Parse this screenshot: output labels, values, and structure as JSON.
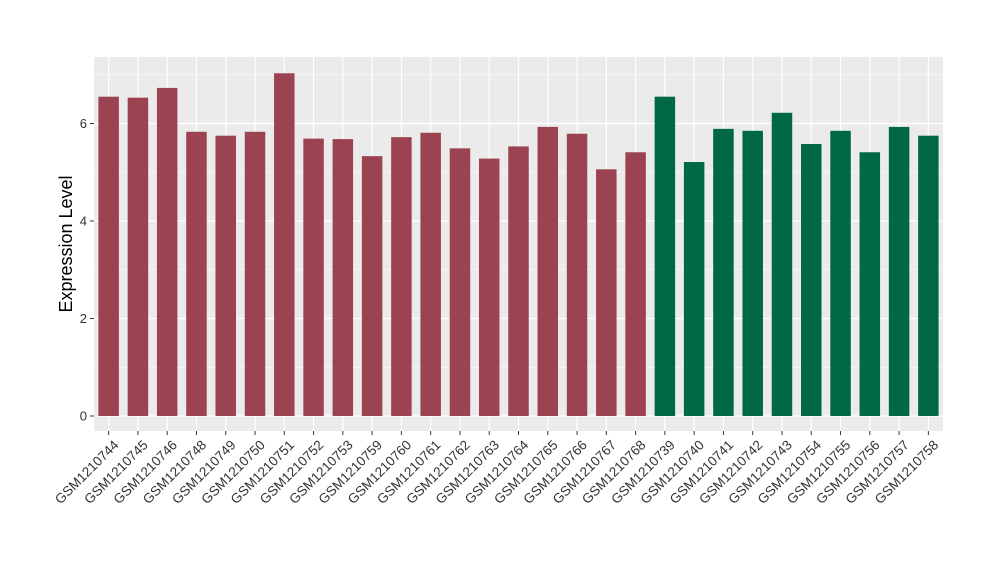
{
  "chart_data": {
    "type": "bar",
    "title": "",
    "xlabel": "",
    "ylabel": "Expression Level",
    "ylim": [
      0,
      7.25
    ],
    "yticks": [
      0,
      2,
      4,
      6
    ],
    "grid": true,
    "colors": {
      "group_a": "#9B4350",
      "group_b": "#006845",
      "panel": "#EBEBEB",
      "grid": "#FFFFFF"
    },
    "categories": [
      "GSM1210744",
      "GSM1210745",
      "GSM1210746",
      "GSM1210748",
      "GSM1210749",
      "GSM1210750",
      "GSM1210751",
      "GSM1210752",
      "GSM1210753",
      "GSM1210759",
      "GSM1210760",
      "GSM1210761",
      "GSM1210762",
      "GSM1210763",
      "GSM1210764",
      "GSM1210765",
      "GSM1210766",
      "GSM1210767",
      "GSM1210768",
      "GSM1210739",
      "GSM1210740",
      "GSM1210741",
      "GSM1210742",
      "GSM1210743",
      "GSM1210754",
      "GSM1210755",
      "GSM1210756",
      "GSM1210757",
      "GSM1210758"
    ],
    "values": [
      6.55,
      6.53,
      6.73,
      5.83,
      5.75,
      5.83,
      7.03,
      5.69,
      5.68,
      5.33,
      5.72,
      5.81,
      5.49,
      5.28,
      5.53,
      5.93,
      5.79,
      5.06,
      5.41,
      6.55,
      5.21,
      5.89,
      5.85,
      6.22,
      5.58,
      5.85,
      5.41,
      5.93,
      5.75
    ],
    "groups": [
      "a",
      "a",
      "a",
      "a",
      "a",
      "a",
      "a",
      "a",
      "a",
      "a",
      "a",
      "a",
      "a",
      "a",
      "a",
      "a",
      "a",
      "a",
      "a",
      "b",
      "b",
      "b",
      "b",
      "b",
      "b",
      "b",
      "b",
      "b",
      "b"
    ]
  }
}
